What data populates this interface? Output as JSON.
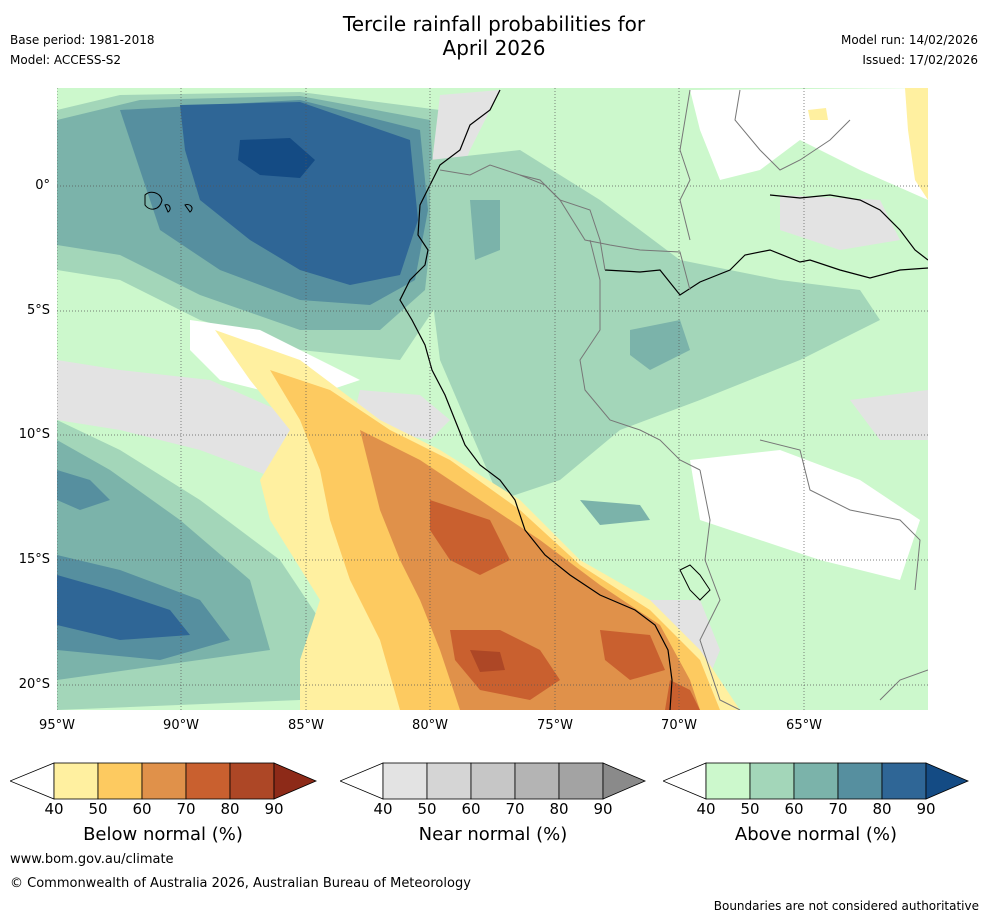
{
  "title": {
    "line1": "Tercile rainfall probabilities for",
    "line2": "April 2026"
  },
  "meta_left": {
    "base_period": "Base period: 1981-2018",
    "model": "Model: ACCESS-S2"
  },
  "meta_right": {
    "model_run": "Model run: 14/02/2026",
    "issued": "Issued: 17/02/2026"
  },
  "lat_labels": [
    "0°",
    "5°S",
    "10°S",
    "15°S",
    "20°S"
  ],
  "lon_labels": [
    "95°W",
    "90°W",
    "85°W",
    "80°W",
    "75°W",
    "70°W",
    "65°W"
  ],
  "legends": [
    {
      "title": "Below normal (%)",
      "ticks": [
        "40",
        "50",
        "60",
        "70",
        "80",
        "90"
      ],
      "colors": [
        "#fff0a0",
        "#fdca60",
        "#e0914a",
        "#c9602f",
        "#ad4726",
        "#8d2a18"
      ]
    },
    {
      "title": "Near normal (%)",
      "ticks": [
        "40",
        "50",
        "60",
        "70",
        "80",
        "90"
      ],
      "colors": [
        "#e3e3e3",
        "#d5d5d5",
        "#c6c6c6",
        "#b4b4b4",
        "#a3a3a3",
        "#8a8a8a"
      ]
    },
    {
      "title": "Above normal (%)",
      "ticks": [
        "40",
        "50",
        "60",
        "70",
        "80",
        "90"
      ],
      "colors": [
        "#ccf8cc",
        "#a3d6b9",
        "#7bb3aa",
        "#568f9f",
        "#2f6696",
        "#144b84"
      ]
    }
  ],
  "footer": {
    "website": "www.bom.gov.au/climate",
    "copyright": "© Commonwealth of Australia 2026, Australian Bureau of Meteorology",
    "disclaimer": "Boundaries are not considered authoritative"
  }
}
